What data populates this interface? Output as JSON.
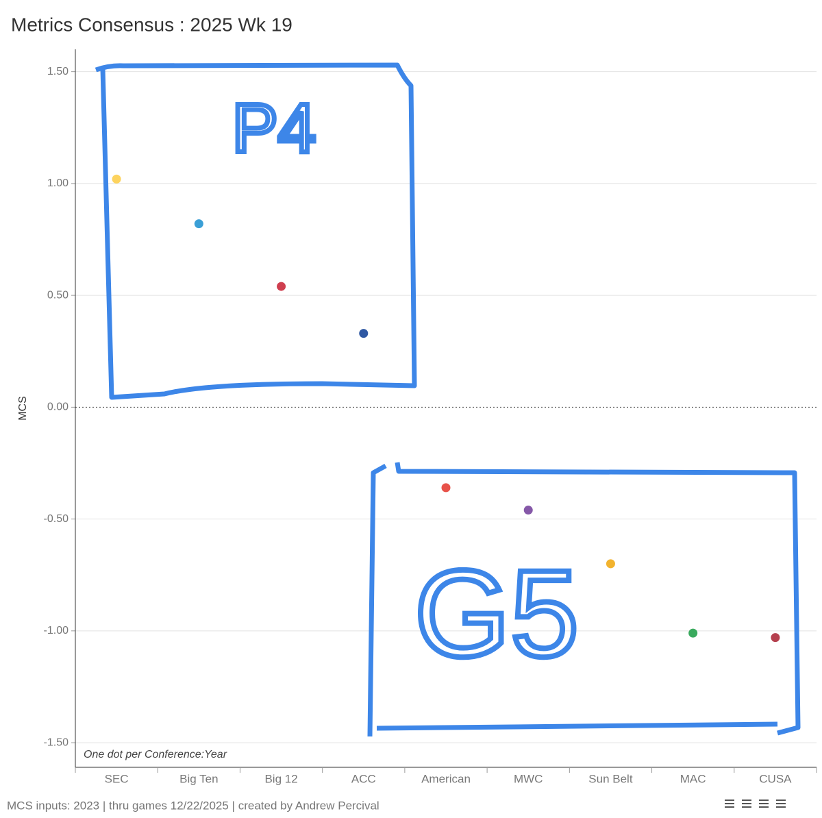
{
  "chart_data": {
    "type": "dot",
    "title": "Metrics Consensus : 2025 Wk 19",
    "y_label": "MCS",
    "annotation": "One dot per Conference:Year",
    "footer": "MCS inputs: 2023  |  thru games 12/22/2025  |  created by Andrew Percival",
    "group_labels": [
      "P4",
      "G5"
    ],
    "categories": [
      "SEC",
      "Big Ten",
      "Big 12",
      "ACC",
      "American",
      "MWC",
      "Sun Belt",
      "MAC",
      "CUSA"
    ],
    "values": [
      1.02,
      0.82,
      0.54,
      0.33,
      -0.36,
      -0.46,
      -0.7,
      -1.01,
      -1.03
    ],
    "colors": [
      "#fdd35e",
      "#3a9fd6",
      "#cf3f4f",
      "#2f58a3",
      "#e8524a",
      "#8558a8",
      "#f2b32e",
      "#3aaa5e",
      "#b5404e"
    ],
    "ylim": [
      -1.61,
      1.6
    ],
    "yticks": [
      {
        "value": -1.5,
        "label": "-1.50"
      },
      {
        "value": -1,
        "label": "-1.00"
      },
      {
        "value": -0.5,
        "label": "-0.50"
      },
      {
        "value": 0,
        "label": "0.00"
      },
      {
        "value": 0.5,
        "label": "0.50"
      },
      {
        "value": 1,
        "label": "1.00"
      },
      {
        "value": 1.5,
        "label": "1.50"
      }
    ],
    "grid": true
  }
}
